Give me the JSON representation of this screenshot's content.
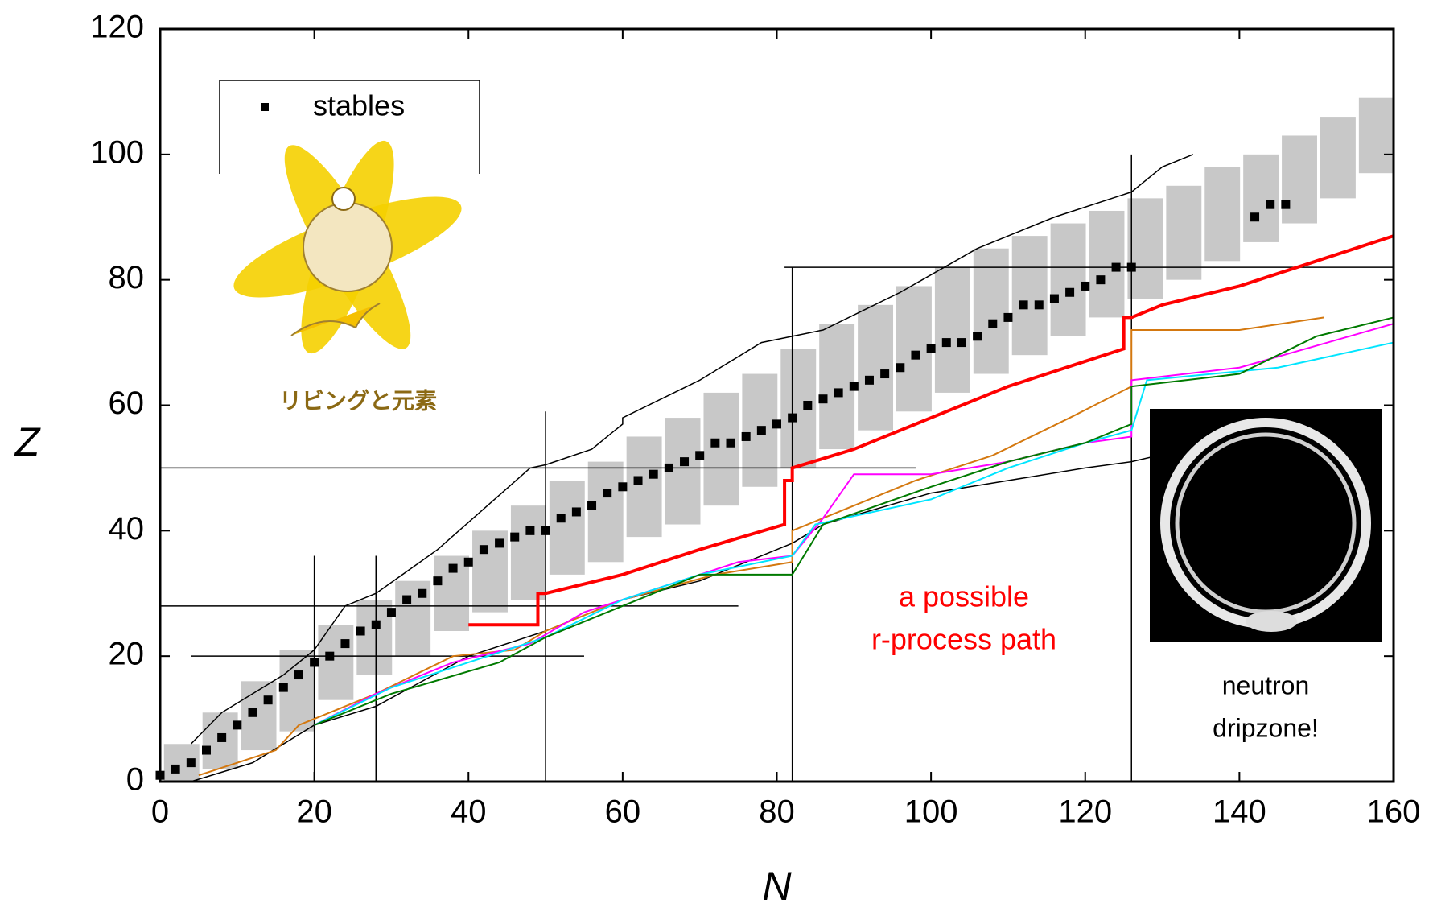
{
  "chart_data": {
    "type": "scatter",
    "xlabel": "N",
    "ylabel": "Z",
    "xlim": [
      0,
      160
    ],
    "ylim": [
      0,
      120
    ],
    "xticks": [
      0,
      20,
      40,
      60,
      80,
      100,
      120,
      140,
      160
    ],
    "yticks": [
      0,
      20,
      40,
      60,
      80,
      100,
      120
    ],
    "legend": "upper left",
    "known": {
      "color": "#c8c8c8",
      "x": [
        3,
        8,
        13,
        18,
        23,
        28,
        33,
        38,
        43,
        48,
        53,
        58,
        63,
        68,
        73,
        78,
        83,
        88,
        93,
        98,
        103,
        108,
        113,
        118,
        123,
        128,
        133,
        138,
        143,
        148,
        153,
        158
      ],
      "low": [
        0,
        2,
        5,
        8,
        13,
        17,
        20,
        24,
        27,
        29,
        33,
        35,
        39,
        41,
        44,
        47,
        50,
        53,
        56,
        59,
        62,
        65,
        68,
        71,
        74,
        77,
        80,
        83,
        86,
        89,
        93,
        97
      ],
      "high": [
        6,
        11,
        16,
        21,
        25,
        29,
        32,
        36,
        40,
        44,
        48,
        51,
        55,
        58,
        62,
        65,
        69,
        73,
        76,
        79,
        82,
        85,
        87,
        89,
        91,
        93,
        95,
        98,
        100,
        103,
        106,
        109
      ]
    },
    "series": [
      {
        "name": "stables",
        "color": "#000000",
        "x": [
          0,
          2,
          4,
          6,
          8,
          10,
          12,
          14,
          16,
          18,
          20,
          22,
          24,
          26,
          28,
          30,
          32,
          34,
          36,
          38,
          40,
          42,
          44,
          46,
          48,
          50,
          52,
          54,
          56,
          58,
          60,
          62,
          64,
          66,
          68,
          70,
          72,
          74,
          76,
          78,
          80,
          82,
          84,
          86,
          88,
          90,
          92,
          94,
          96,
          98,
          100,
          102,
          104,
          106,
          108,
          110,
          112,
          114,
          116,
          118,
          120,
          122,
          124,
          126,
          142,
          144,
          146
        ],
        "y": [
          1,
          2,
          3,
          5,
          7,
          9,
          11,
          13,
          15,
          17,
          19,
          20,
          22,
          24,
          25,
          27,
          29,
          30,
          32,
          34,
          35,
          37,
          38,
          39,
          40,
          40,
          42,
          43,
          44,
          46,
          47,
          48,
          49,
          50,
          51,
          52,
          54,
          54,
          55,
          56,
          57,
          58,
          60,
          61,
          62,
          63,
          64,
          65,
          66,
          68,
          69,
          70,
          70,
          71,
          73,
          74,
          76,
          76,
          77,
          78,
          79,
          80,
          82,
          82,
          90,
          92,
          92
        ]
      }
    ],
    "lines": [
      {
        "color": "#000000",
        "line_width": 1.5,
        "x": [
          4,
          8,
          12,
          16,
          20,
          24,
          28,
          36,
          48,
          50,
          56,
          60,
          60,
          70,
          78,
          86,
          96,
          106,
          116,
          126,
          130,
          134
        ],
        "y": [
          6,
          11,
          14,
          17,
          21,
          28,
          30,
          37,
          50,
          50.5,
          53,
          57,
          58,
          64,
          70,
          72,
          78,
          85,
          90,
          94,
          98,
          100
        ]
      },
      {
        "color": "#000000",
        "line_width": 1.5,
        "x": [
          4,
          12,
          20,
          28,
          40,
          50,
          60,
          70,
          82,
          86,
          100,
          110,
          120,
          126,
          140
        ],
        "y": [
          0,
          3,
          9,
          12,
          20,
          24,
          29,
          32,
          38,
          41,
          46,
          48,
          50,
          51,
          55
        ]
      },
      {
        "color": "#000000",
        "line_width": 1.5,
        "x": [
          20,
          20
        ],
        "y": [
          0,
          36
        ]
      },
      {
        "color": "#000000",
        "line_width": 1.5,
        "x": [
          28,
          28
        ],
        "y": [
          0,
          36
        ]
      },
      {
        "color": "#000000",
        "line_width": 1.5,
        "x": [
          50,
          50
        ],
        "y": [
          0,
          59
        ]
      },
      {
        "color": "#000000",
        "line_width": 1.5,
        "x": [
          82,
          82
        ],
        "y": [
          0,
          82
        ]
      },
      {
        "color": "#000000",
        "line_width": 1.5,
        "x": [
          126,
          126
        ],
        "y": [
          0,
          100
        ]
      },
      {
        "color": "#000000",
        "line_width": 1.5,
        "x": [
          4,
          55
        ],
        "y": [
          20,
          20
        ]
      },
      {
        "color": "#000000",
        "line_width": 1.5,
        "x": [
          0,
          75
        ],
        "y": [
          28,
          28
        ]
      },
      {
        "color": "#000000",
        "line_width": 1.5,
        "x": [
          0,
          98
        ],
        "y": [
          50,
          50
        ]
      },
      {
        "color": "#000000",
        "line_width": 1.5,
        "x": [
          81,
          160
        ],
        "y": [
          82,
          82
        ]
      },
      {
        "color": "#d4780f",
        "line_width": 2,
        "x": [
          5,
          15,
          18,
          28,
          38,
          46,
          50,
          60,
          72,
          82,
          82,
          90,
          98,
          108,
          118,
          126,
          126,
          140,
          151
        ],
        "y": [
          1,
          5,
          9,
          14,
          20,
          21,
          24,
          29,
          33,
          35,
          40,
          44,
          48,
          52,
          58,
          63,
          72,
          72,
          74
        ]
      },
      {
        "color": "#ff00ff",
        "line_width": 2,
        "x": [
          20,
          28,
          38,
          48,
          55,
          65,
          75,
          82,
          86,
          90,
          100,
          110,
          120,
          126,
          126,
          140,
          160
        ],
        "y": [
          9,
          14,
          19,
          22,
          27,
          31,
          35,
          36,
          42,
          49,
          49,
          51,
          54,
          55,
          64,
          66,
          73
        ]
      },
      {
        "color": "#00e5ff",
        "line_width": 2,
        "x": [
          20,
          30,
          40,
          50,
          60,
          70,
          82,
          85,
          100,
          110,
          120,
          126,
          128,
          145,
          160
        ],
        "y": [
          9,
          15,
          19,
          23,
          29,
          33,
          36,
          41,
          45,
          50,
          54,
          56,
          64,
          66,
          70
        ]
      },
      {
        "color": "#007a00",
        "line_width": 2,
        "x": [
          20,
          30,
          44,
          50,
          60,
          70,
          82,
          86,
          100,
          110,
          120,
          126,
          126,
          140,
          150,
          160
        ],
        "y": [
          9,
          14,
          19,
          23,
          28,
          33,
          33,
          41,
          47,
          51,
          54,
          57,
          63,
          65,
          71,
          74
        ]
      },
      {
        "color": "#ff0000",
        "line_width": 4,
        "x": [
          40,
          49,
          49,
          50,
          60,
          70,
          81,
          81,
          82,
          82,
          90,
          100,
          110,
          120,
          125,
          125,
          126,
          130,
          140,
          150,
          160
        ],
        "y": [
          25,
          25,
          30,
          30,
          33,
          37,
          41,
          48,
          48,
          50,
          53,
          58,
          63,
          67,
          69,
          74,
          74,
          76,
          79,
          83,
          87
        ]
      }
    ],
    "annotations": [
      {
        "lines": [
          "a possible",
          "r-process path"
        ],
        "color": "#ff0000"
      },
      {
        "lines": [
          "neutron",
          "dripzone!"
        ],
        "color": "#000000"
      }
    ],
    "logo_text": "リビングと元素"
  }
}
